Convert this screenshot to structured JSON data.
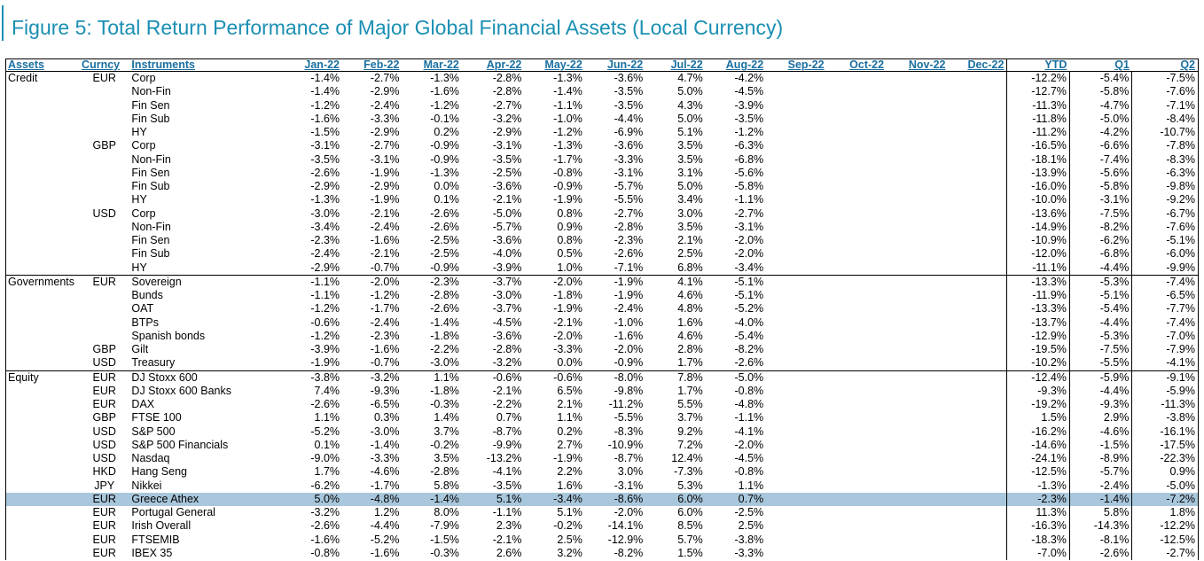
{
  "title": "Figure 5: Total Return Performance of Major Global Financial Assets (Local Currency)",
  "headers": [
    "Assets",
    "Curncy",
    "Instruments",
    "Jan-22",
    "Feb-22",
    "Mar-22",
    "Apr-22",
    "May-22",
    "Jun-22",
    "Jul-22",
    "Aug-22",
    "Sep-22",
    "Oct-22",
    "Nov-22",
    "Dec-22",
    "YTD",
    "Q1",
    "Q2"
  ],
  "colors": {
    "accent": "#1a8fb3",
    "header_text": "#1a6fa0",
    "highlight": "#a9c7dc"
  },
  "rows": [
    {
      "asset": "Credit",
      "cur": "EUR",
      "inst": "Corp",
      "m": [
        "-1.4%",
        "-2.7%",
        "-1.3%",
        "-2.8%",
        "-1.3%",
        "-3.6%",
        "4.7%",
        "-4.2%"
      ],
      "ytd": "-12.2%",
      "q1": "-5.4%",
      "q2": "-7.5%"
    },
    {
      "asset": "",
      "cur": "",
      "inst": "Non-Fin",
      "m": [
        "-1.4%",
        "-2.9%",
        "-1.6%",
        "-2.8%",
        "-1.4%",
        "-3.5%",
        "5.0%",
        "-4.5%"
      ],
      "ytd": "-12.7%",
      "q1": "-5.8%",
      "q2": "-7.6%"
    },
    {
      "asset": "",
      "cur": "",
      "inst": "Fin Sen",
      "m": [
        "-1.2%",
        "-2.4%",
        "-1.2%",
        "-2.7%",
        "-1.1%",
        "-3.5%",
        "4.3%",
        "-3.9%"
      ],
      "ytd": "-11.3%",
      "q1": "-4.7%",
      "q2": "-7.1%"
    },
    {
      "asset": "",
      "cur": "",
      "inst": "Fin Sub",
      "m": [
        "-1.6%",
        "-3.3%",
        "-0.1%",
        "-3.2%",
        "-1.0%",
        "-4.4%",
        "5.0%",
        "-3.5%"
      ],
      "ytd": "-11.8%",
      "q1": "-5.0%",
      "q2": "-8.4%"
    },
    {
      "asset": "",
      "cur": "",
      "inst": "HY",
      "m": [
        "-1.5%",
        "-2.9%",
        "0.2%",
        "-2.9%",
        "-1.2%",
        "-6.9%",
        "5.1%",
        "-1.2%"
      ],
      "ytd": "-11.2%",
      "q1": "-4.2%",
      "q2": "-10.7%"
    },
    {
      "asset": "",
      "cur": "GBP",
      "inst": "Corp",
      "m": [
        "-3.1%",
        "-2.7%",
        "-0.9%",
        "-3.1%",
        "-1.3%",
        "-3.6%",
        "3.5%",
        "-6.3%"
      ],
      "ytd": "-16.5%",
      "q1": "-6.6%",
      "q2": "-7.8%"
    },
    {
      "asset": "",
      "cur": "",
      "inst": "Non-Fin",
      "m": [
        "-3.5%",
        "-3.1%",
        "-0.9%",
        "-3.5%",
        "-1.7%",
        "-3.3%",
        "3.5%",
        "-6.8%"
      ],
      "ytd": "-18.1%",
      "q1": "-7.4%",
      "q2": "-8.3%"
    },
    {
      "asset": "",
      "cur": "",
      "inst": "Fin Sen",
      "m": [
        "-2.6%",
        "-1.9%",
        "-1.3%",
        "-2.5%",
        "-0.8%",
        "-3.1%",
        "3.1%",
        "-5.6%"
      ],
      "ytd": "-13.9%",
      "q1": "-5.6%",
      "q2": "-6.3%"
    },
    {
      "asset": "",
      "cur": "",
      "inst": "Fin Sub",
      "m": [
        "-2.9%",
        "-2.9%",
        "0.0%",
        "-3.6%",
        "-0.9%",
        "-5.7%",
        "5.0%",
        "-5.8%"
      ],
      "ytd": "-16.0%",
      "q1": "-5.8%",
      "q2": "-9.8%"
    },
    {
      "asset": "",
      "cur": "",
      "inst": "HY",
      "m": [
        "-1.3%",
        "-1.9%",
        "0.1%",
        "-2.1%",
        "-1.9%",
        "-5.5%",
        "3.4%",
        "-1.1%"
      ],
      "ytd": "-10.0%",
      "q1": "-3.1%",
      "q2": "-9.2%"
    },
    {
      "asset": "",
      "cur": "USD",
      "inst": "Corp",
      "m": [
        "-3.0%",
        "-2.1%",
        "-2.6%",
        "-5.0%",
        "0.8%",
        "-2.7%",
        "3.0%",
        "-2.7%"
      ],
      "ytd": "-13.6%",
      "q1": "-7.5%",
      "q2": "-6.7%"
    },
    {
      "asset": "",
      "cur": "",
      "inst": "Non-Fin",
      "m": [
        "-3.4%",
        "-2.4%",
        "-2.6%",
        "-5.7%",
        "0.9%",
        "-2.8%",
        "3.5%",
        "-3.1%"
      ],
      "ytd": "-14.9%",
      "q1": "-8.2%",
      "q2": "-7.6%"
    },
    {
      "asset": "",
      "cur": "",
      "inst": "Fin Sen",
      "m": [
        "-2.3%",
        "-1.6%",
        "-2.5%",
        "-3.6%",
        "0.8%",
        "-2.3%",
        "2.1%",
        "-2.0%"
      ],
      "ytd": "-10.9%",
      "q1": "-6.2%",
      "q2": "-5.1%"
    },
    {
      "asset": "",
      "cur": "",
      "inst": "Fin Sub",
      "m": [
        "-2.4%",
        "-2.1%",
        "-2.5%",
        "-4.0%",
        "0.5%",
        "-2.6%",
        "2.5%",
        "-2.0%"
      ],
      "ytd": "-12.0%",
      "q1": "-6.8%",
      "q2": "-6.0%"
    },
    {
      "asset": "",
      "cur": "",
      "inst": "HY",
      "m": [
        "-2.9%",
        "-0.7%",
        "-0.9%",
        "-3.9%",
        "1.0%",
        "-7.1%",
        "6.8%",
        "-3.4%"
      ],
      "ytd": "-11.1%",
      "q1": "-4.4%",
      "q2": "-9.9%"
    },
    {
      "asset": "Governments",
      "cur": "EUR",
      "inst": "Sovereign",
      "m": [
        "-1.1%",
        "-2.0%",
        "-2.3%",
        "-3.7%",
        "-2.0%",
        "-1.9%",
        "4.1%",
        "-5.1%"
      ],
      "ytd": "-13.3%",
      "q1": "-5.3%",
      "q2": "-7.4%",
      "sep": true
    },
    {
      "asset": "",
      "cur": "",
      "inst": "Bunds",
      "m": [
        "-1.1%",
        "-1.2%",
        "-2.8%",
        "-3.0%",
        "-1.8%",
        "-1.9%",
        "4.6%",
        "-5.1%"
      ],
      "ytd": "-11.9%",
      "q1": "-5.1%",
      "q2": "-6.5%"
    },
    {
      "asset": "",
      "cur": "",
      "inst": "OAT",
      "m": [
        "-1.2%",
        "-1.7%",
        "-2.6%",
        "-3.7%",
        "-1.9%",
        "-2.4%",
        "4.8%",
        "-5.2%"
      ],
      "ytd": "-13.3%",
      "q1": "-5.4%",
      "q2": "-7.7%"
    },
    {
      "asset": "",
      "cur": "",
      "inst": "BTPs",
      "m": [
        "-0.6%",
        "-2.4%",
        "-1.4%",
        "-4.5%",
        "-2.1%",
        "-1.0%",
        "1.6%",
        "-4.0%"
      ],
      "ytd": "-13.7%",
      "q1": "-4.4%",
      "q2": "-7.4%"
    },
    {
      "asset": "",
      "cur": "",
      "inst": "Spanish bonds",
      "m": [
        "-1.2%",
        "-2.3%",
        "-1.8%",
        "-3.6%",
        "-2.0%",
        "-1.6%",
        "4.6%",
        "-5.4%"
      ],
      "ytd": "-12.9%",
      "q1": "-5.3%",
      "q2": "-7.0%"
    },
    {
      "asset": "",
      "cur": "GBP",
      "inst": "Gilt",
      "m": [
        "-3.9%",
        "-1.6%",
        "-2.2%",
        "-2.8%",
        "-3.3%",
        "-2.0%",
        "2.8%",
        "-8.2%"
      ],
      "ytd": "-19.5%",
      "q1": "-7.5%",
      "q2": "-7.9%"
    },
    {
      "asset": "",
      "cur": "USD",
      "inst": "Treasury",
      "m": [
        "-1.9%",
        "-0.7%",
        "-3.0%",
        "-3.2%",
        "0.0%",
        "-0.9%",
        "1.7%",
        "-2.6%"
      ],
      "ytd": "-10.2%",
      "q1": "-5.5%",
      "q2": "-4.1%"
    },
    {
      "asset": "Equity",
      "cur": "EUR",
      "inst": "DJ Stoxx 600",
      "m": [
        "-3.8%",
        "-3.2%",
        "1.1%",
        "-0.6%",
        "-0.6%",
        "-8.0%",
        "7.8%",
        "-5.0%"
      ],
      "ytd": "-12.4%",
      "q1": "-5.9%",
      "q2": "-9.1%",
      "sep": true
    },
    {
      "asset": "",
      "cur": "EUR",
      "inst": "DJ Stoxx 600 Banks",
      "m": [
        "7.4%",
        "-9.3%",
        "-1.8%",
        "-2.1%",
        "6.5%",
        "-9.8%",
        "1.7%",
        "-0.8%"
      ],
      "ytd": "-9.3%",
      "q1": "-4.4%",
      "q2": "-5.9%"
    },
    {
      "asset": "",
      "cur": "EUR",
      "inst": "DAX",
      "m": [
        "-2.6%",
        "-6.5%",
        "-0.3%",
        "-2.2%",
        "2.1%",
        "-11.2%",
        "5.5%",
        "-4.8%"
      ],
      "ytd": "-19.2%",
      "q1": "-9.3%",
      "q2": "-11.3%"
    },
    {
      "asset": "",
      "cur": "GBP",
      "inst": "FTSE 100",
      "m": [
        "1.1%",
        "0.3%",
        "1.4%",
        "0.7%",
        "1.1%",
        "-5.5%",
        "3.7%",
        "-1.1%"
      ],
      "ytd": "1.5%",
      "q1": "2.9%",
      "q2": "-3.8%"
    },
    {
      "asset": "",
      "cur": "USD",
      "inst": "S&P 500",
      "m": [
        "-5.2%",
        "-3.0%",
        "3.7%",
        "-8.7%",
        "0.2%",
        "-8.3%",
        "9.2%",
        "-4.1%"
      ],
      "ytd": "-16.2%",
      "q1": "-4.6%",
      "q2": "-16.1%"
    },
    {
      "asset": "",
      "cur": "USD",
      "inst": "S&P 500 Financials",
      "m": [
        "0.1%",
        "-1.4%",
        "-0.2%",
        "-9.9%",
        "2.7%",
        "-10.9%",
        "7.2%",
        "-2.0%"
      ],
      "ytd": "-14.6%",
      "q1": "-1.5%",
      "q2": "-17.5%"
    },
    {
      "asset": "",
      "cur": "USD",
      "inst": "Nasdaq",
      "m": [
        "-9.0%",
        "-3.3%",
        "3.5%",
        "-13.2%",
        "-1.9%",
        "-8.7%",
        "12.4%",
        "-4.5%"
      ],
      "ytd": "-24.1%",
      "q1": "-8.9%",
      "q2": "-22.3%"
    },
    {
      "asset": "",
      "cur": "HKD",
      "inst": "Hang Seng",
      "m": [
        "1.7%",
        "-4.6%",
        "-2.8%",
        "-4.1%",
        "2.2%",
        "3.0%",
        "-7.3%",
        "-0.8%"
      ],
      "ytd": "-12.5%",
      "q1": "-5.7%",
      "q2": "0.9%"
    },
    {
      "asset": "",
      "cur": "JPY",
      "inst": "Nikkei",
      "m": [
        "-6.2%",
        "-1.7%",
        "5.8%",
        "-3.5%",
        "1.6%",
        "-3.1%",
        "5.3%",
        "1.1%"
      ],
      "ytd": "-1.3%",
      "q1": "-2.4%",
      "q2": "-5.0%"
    },
    {
      "asset": "",
      "cur": "EUR",
      "inst": "Greece Athex",
      "m": [
        "5.0%",
        "-4.8%",
        "-1.4%",
        "5.1%",
        "-3.4%",
        "-8.6%",
        "6.0%",
        "0.7%"
      ],
      "ytd": "-2.3%",
      "q1": "-1.4%",
      "q2": "-7.2%",
      "hl": true
    },
    {
      "asset": "",
      "cur": "EUR",
      "inst": "Portugal General",
      "m": [
        "-3.2%",
        "1.2%",
        "8.0%",
        "-1.1%",
        "5.1%",
        "-2.0%",
        "6.0%",
        "-2.5%"
      ],
      "ytd": "11.3%",
      "q1": "5.8%",
      "q2": "1.8%"
    },
    {
      "asset": "",
      "cur": "EUR",
      "inst": "Irish Overall",
      "m": [
        "-2.6%",
        "-4.4%",
        "-7.9%",
        "2.3%",
        "-0.2%",
        "-14.1%",
        "8.5%",
        "2.5%"
      ],
      "ytd": "-16.3%",
      "q1": "-14.3%",
      "q2": "-12.2%"
    },
    {
      "asset": "",
      "cur": "EUR",
      "inst": "FTSEMIB",
      "m": [
        "-1.6%",
        "-5.2%",
        "-1.5%",
        "-2.1%",
        "2.5%",
        "-12.9%",
        "5.7%",
        "-3.8%"
      ],
      "ytd": "-18.3%",
      "q1": "-8.1%",
      "q2": "-12.5%"
    },
    {
      "asset": "",
      "cur": "EUR",
      "inst": "IBEX 35",
      "m": [
        "-0.8%",
        "-1.6%",
        "-0.3%",
        "2.6%",
        "3.2%",
        "-8.2%",
        "1.5%",
        "-3.3%"
      ],
      "ytd": "-7.0%",
      "q1": "-2.6%",
      "q2": "-2.7%"
    }
  ]
}
